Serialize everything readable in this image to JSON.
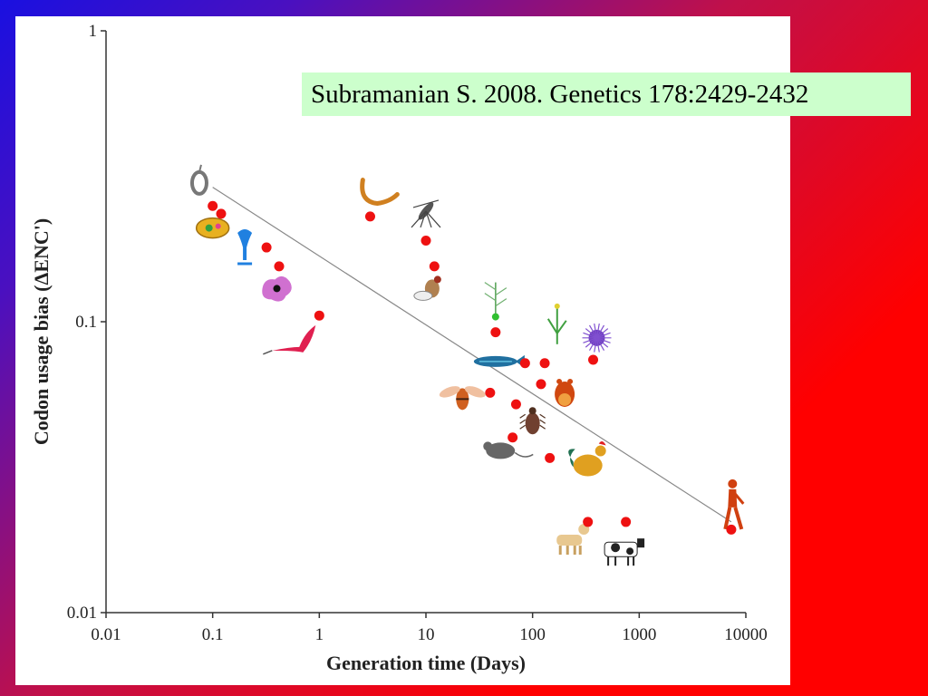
{
  "citation": "Subramanian S. 2008. Genetics 178:2429-2432",
  "chart_data": {
    "type": "scatter",
    "title": "",
    "xlabel": "Generation time (Days)",
    "ylabel": "Codon usage bias (ΔENC')",
    "xscale": "log",
    "yscale": "log",
    "xlim": [
      0.01,
      10000
    ],
    "ylim": [
      0.01,
      1
    ],
    "x_ticks": [
      "0.01",
      "0.1",
      "1",
      "10",
      "100",
      "1000",
      "10000"
    ],
    "y_ticks": [
      "0.01",
      "0.1",
      "1"
    ],
    "points": [
      {
        "x": 0.1,
        "y": 0.25
      },
      {
        "x": 0.12,
        "y": 0.235
      },
      {
        "x": 0.32,
        "y": 0.18
      },
      {
        "x": 0.42,
        "y": 0.155
      },
      {
        "x": 1.0,
        "y": 0.105
      },
      {
        "x": 3.0,
        "y": 0.23
      },
      {
        "x": 10,
        "y": 0.19
      },
      {
        "x": 12,
        "y": 0.155
      },
      {
        "x": 45,
        "y": 0.092
      },
      {
        "x": 85,
        "y": 0.072
      },
      {
        "x": 130,
        "y": 0.072
      },
      {
        "x": 40,
        "y": 0.057
      },
      {
        "x": 70,
        "y": 0.052
      },
      {
        "x": 120,
        "y": 0.061
      },
      {
        "x": 370,
        "y": 0.074
      },
      {
        "x": 65,
        "y": 0.04
      },
      {
        "x": 145,
        "y": 0.034
      },
      {
        "x": 330,
        "y": 0.0205
      },
      {
        "x": 750,
        "y": 0.0205
      },
      {
        "x": 7300,
        "y": 0.0193
      }
    ],
    "point_color": "#ee1111",
    "trend_line": {
      "x": [
        0.1,
        7300
      ],
      "y": [
        0.29,
        0.0205
      ],
      "color": "#888888"
    },
    "icons": [
      {
        "name": "bacterium-icon",
        "x": 0.075,
        "y": 0.3
      },
      {
        "name": "paramecium-icon",
        "x": 0.1,
        "y": 0.21
      },
      {
        "name": "stentor-icon",
        "x": 0.2,
        "y": 0.18
      },
      {
        "name": "amoeba-icon",
        "x": 0.4,
        "y": 0.13
      },
      {
        "name": "trypanosome-icon",
        "x": 0.65,
        "y": 0.088
      },
      {
        "name": "worm-icon",
        "x": 3.5,
        "y": 0.27
      },
      {
        "name": "mosquito-icon",
        "x": 10,
        "y": 0.24
      },
      {
        "name": "fly-icon",
        "x": 11,
        "y": 0.13
      },
      {
        "name": "plant-icon",
        "x": 45,
        "y": 0.12
      },
      {
        "name": "grass-icon",
        "x": 170,
        "y": 0.098
      },
      {
        "name": "sea-urchin-icon",
        "x": 400,
        "y": 0.088
      },
      {
        "name": "fish-icon",
        "x": 45,
        "y": 0.073
      },
      {
        "name": "bee-icon",
        "x": 22,
        "y": 0.055
      },
      {
        "name": "frog-icon",
        "x": 200,
        "y": 0.058
      },
      {
        "name": "beetle-icon",
        "x": 100,
        "y": 0.046
      },
      {
        "name": "mouse-icon",
        "x": 50,
        "y": 0.036
      },
      {
        "name": "rooster-icon",
        "x": 330,
        "y": 0.033
      },
      {
        "name": "dog-icon",
        "x": 230,
        "y": 0.018
      },
      {
        "name": "cow-icon",
        "x": 700,
        "y": 0.0165
      },
      {
        "name": "human-icon",
        "x": 7500,
        "y": 0.023
      }
    ]
  }
}
